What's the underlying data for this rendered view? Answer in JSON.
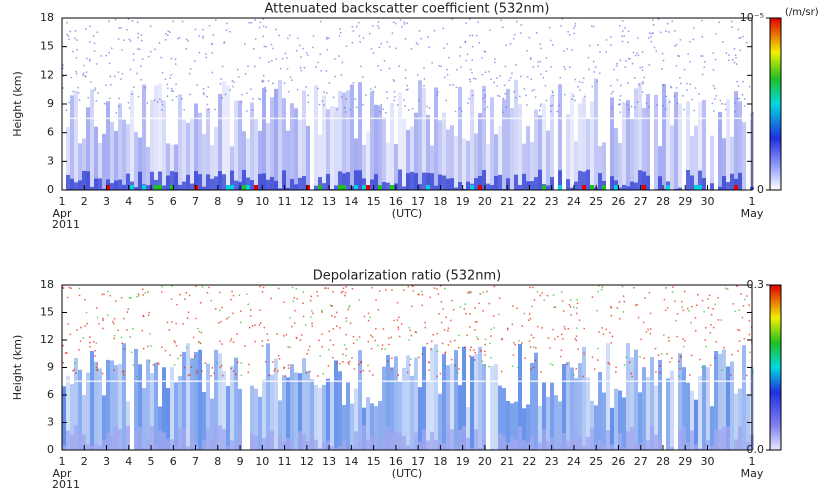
{
  "chart_data": [
    {
      "type": "heatmap",
      "title": "Attenuated backscatter coefficient (532nm)",
      "ylabel": "Height (km)",
      "xlabel": "(UTC)",
      "start_month": "Apr",
      "start_year": "2011",
      "end_month": "May",
      "xlim": [
        1,
        32
      ],
      "xticks": [
        1,
        2,
        3,
        4,
        5,
        6,
        7,
        8,
        9,
        10,
        11,
        12,
        13,
        14,
        15,
        16,
        17,
        18,
        19,
        20,
        21,
        22,
        23,
        24,
        25,
        26,
        27,
        28,
        29,
        30,
        {
          "value": 32,
          "label": "1"
        }
      ],
      "ylim": [
        0,
        18
      ],
      "yticks": [
        0,
        3,
        6,
        9,
        12,
        15,
        18
      ],
      "colorbar_unit": "(/m/sr)",
      "clim": [
        0,
        1e-05
      ],
      "cticks": [
        0,
        {
          "value": 1e-05,
          "label": "10⁻⁵"
        }
      ]
    },
    {
      "type": "heatmap",
      "title": "Depolarization ratio (532nm)",
      "ylabel": "Height (km)",
      "xlabel": "(UTC)",
      "start_month": "Apr",
      "start_year": "2011",
      "end_month": "May",
      "xlim": [
        1,
        32
      ],
      "xticks": [
        1,
        2,
        3,
        4,
        5,
        6,
        7,
        8,
        9,
        10,
        11,
        12,
        13,
        14,
        15,
        16,
        17,
        18,
        19,
        20,
        21,
        22,
        23,
        24,
        25,
        26,
        27,
        28,
        29,
        30,
        {
          "value": 32,
          "label": "1"
        }
      ],
      "ylim": [
        0,
        18
      ],
      "yticks": [
        0,
        3,
        6,
        9,
        12,
        15,
        18
      ],
      "clim": [
        0,
        0.3
      ],
      "cticks": [
        {
          "value": 0,
          "label": "0.0"
        },
        0.3
      ]
    }
  ]
}
